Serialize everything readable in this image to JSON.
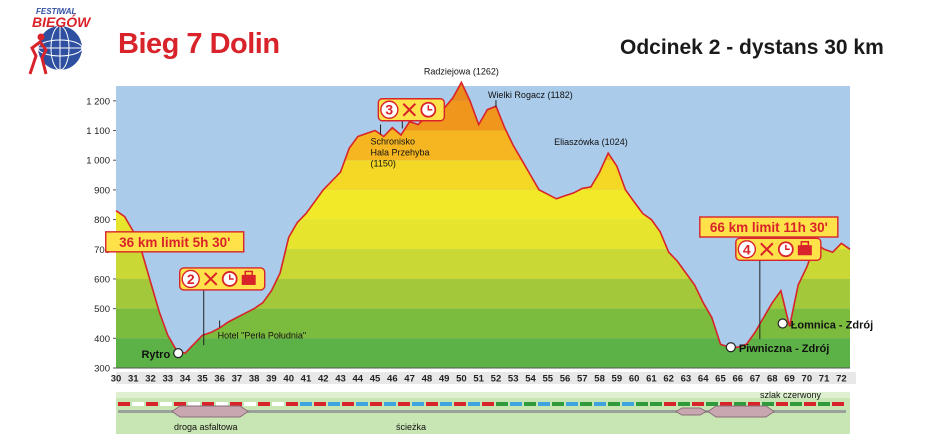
{
  "header": {
    "logo_line1": "FESTIWAL",
    "logo_line2": "BIEGÓW",
    "title": "Bieg 7 Dolin",
    "subtitle": "Odcinek 2 - dystans 30 km"
  },
  "colors": {
    "accent": "#d9232a",
    "sky": "#aacbea",
    "ground": "#5cb246",
    "band_light": "#f2ea28",
    "band_peak": "#f08f1c",
    "profile_line": "#d9232a",
    "path_blue": "#3ea4e0",
    "path_green": "#2e9a3c",
    "road_gray": "#c9a7b0"
  },
  "chart_data": {
    "type": "area",
    "x": [
      30,
      30.5,
      31,
      31.5,
      32,
      32.5,
      33,
      33.5,
      34,
      34.5,
      35,
      35.5,
      36,
      36.5,
      37,
      37.5,
      38,
      38.5,
      39,
      39.5,
      40,
      40.5,
      41,
      41.5,
      42,
      42.5,
      43,
      43.5,
      44,
      44.5,
      45,
      45.5,
      46,
      46.5,
      47,
      47.5,
      48,
      48.5,
      49,
      49.5,
      50,
      50.5,
      51,
      51.5,
      52,
      52.5,
      53,
      53.5,
      54,
      54.5,
      55,
      55.5,
      56,
      56.5,
      57,
      57.5,
      58,
      58.5,
      59,
      59.5,
      60,
      60.5,
      61,
      61.5,
      62,
      62.5,
      63,
      63.5,
      64,
      64.5,
      65,
      65.5,
      66,
      66.5,
      67,
      67.5,
      68,
      68.5,
      69,
      69.5,
      70,
      70.5,
      71,
      71.5,
      72,
      72.5
    ],
    "y": [
      830,
      810,
      760,
      690,
      590,
      490,
      410,
      360,
      350,
      380,
      410,
      420,
      435,
      455,
      470,
      485,
      500,
      520,
      560,
      620,
      740,
      790,
      820,
      860,
      900,
      930,
      960,
      1040,
      1080,
      1090,
      1100,
      1080,
      1110,
      1085,
      1130,
      1120,
      1150,
      1160,
      1175,
      1210,
      1262,
      1200,
      1120,
      1170,
      1182,
      1110,
      1050,
      1000,
      950,
      900,
      885,
      870,
      880,
      890,
      905,
      910,
      960,
      1024,
      980,
      900,
      860,
      820,
      800,
      760,
      690,
      660,
      620,
      580,
      520,
      470,
      380,
      370,
      370,
      380,
      420,
      470,
      520,
      560,
      440,
      580,
      640,
      720,
      700,
      690,
      720,
      700
    ],
    "xlim": [
      30,
      72.5
    ],
    "ylim": [
      300,
      1250
    ],
    "y_ticks": [
      300,
      400,
      500,
      600,
      700,
      800,
      900,
      1000,
      1100,
      1200
    ],
    "y_tick_labels": [
      "300",
      "400",
      "500",
      "600",
      "700",
      "800",
      "900",
      "1 000",
      "1 100",
      "1 200"
    ],
    "x_ticks": [
      30,
      31,
      32,
      33,
      34,
      35,
      36,
      37,
      38,
      39,
      40,
      41,
      42,
      43,
      44,
      45,
      46,
      47,
      48,
      49,
      50,
      51,
      52,
      53,
      54,
      55,
      56,
      57,
      58,
      59,
      60,
      61,
      62,
      63,
      64,
      65,
      66,
      67,
      68,
      69,
      70,
      71,
      72
    ],
    "bands": [
      {
        "from": 300,
        "to": 400,
        "color": "#5cb246"
      },
      {
        "from": 400,
        "to": 500,
        "color": "#7bbc3f"
      },
      {
        "from": 500,
        "to": 600,
        "color": "#a3c83a"
      },
      {
        "from": 600,
        "to": 700,
        "color": "#c9d835"
      },
      {
        "from": 700,
        "to": 800,
        "color": "#e6e42c"
      },
      {
        "from": 800,
        "to": 900,
        "color": "#f2ea28"
      },
      {
        "from": 900,
        "to": 1000,
        "color": "#f5d826"
      },
      {
        "from": 1000,
        "to": 1100,
        "color": "#f6b621"
      },
      {
        "from": 1100,
        "to": 1200,
        "color": "#f0961c"
      },
      {
        "from": 1200,
        "to": 1300,
        "color": "#e88a1c"
      }
    ],
    "points": [
      {
        "label": "Rytro",
        "x": 33.6,
        "y": 350,
        "anchor": "end",
        "marker": "circle",
        "style": "loc"
      },
      {
        "label": "Hotel \"Perła Południa\"",
        "x": 36,
        "y": 440,
        "anchor": "start",
        "marker": "tick",
        "style": "ann"
      },
      {
        "label": "Radziejowa (1262)",
        "x": 50,
        "y": 1262,
        "anchor": "middle",
        "marker": "none",
        "style": "ann"
      },
      {
        "label": "Wielki Rogacz (1182)",
        "x": 52,
        "y": 1182,
        "anchor": "start",
        "marker": "tick",
        "style": "ann"
      },
      {
        "label": "Eliaszówka (1024)",
        "x": 57.5,
        "y": 1024,
        "anchor": "middle",
        "marker": "none",
        "style": "ann"
      },
      {
        "label": "Piwniczna - Zdrój",
        "x": 65.6,
        "y": 370,
        "anchor": "start",
        "marker": "circle",
        "style": "loc"
      },
      {
        "label": "Łomnica - Zdrój",
        "x": 68.6,
        "y": 450,
        "anchor": "start",
        "marker": "circle",
        "style": "loc"
      }
    ],
    "shelter": {
      "lines": [
        "Schronisko",
        "Hala Przehyba",
        "(1150)"
      ],
      "x": 45.2,
      "y": 1100
    },
    "checkpoints": [
      {
        "number": "2",
        "x": 34.5,
        "y": 600,
        "pointer_y": 360,
        "icons": [
          "cutlery-icon",
          "clock-icon",
          "bag-icon"
        ]
      },
      {
        "number": "3",
        "x": 46,
        "y": 1170,
        "pointer_y": 1090,
        "icons": [
          "cutlery-icon",
          "clock-icon"
        ]
      },
      {
        "number": "4",
        "x": 66.7,
        "y": 700,
        "pointer_y": 380,
        "icons": [
          "cutlery-icon",
          "clock-icon",
          "bag-icon"
        ]
      }
    ],
    "limits": [
      {
        "label": "36 km limit 5h 30'",
        "x": 33.4,
        "y": 725
      },
      {
        "label": "66 km limit 11h 30'",
        "x": 67.8,
        "y": 775
      }
    ]
  },
  "legend": {
    "trail": "szlak czerwony",
    "road": "droga asfaltowa",
    "path": "ścieżka"
  }
}
